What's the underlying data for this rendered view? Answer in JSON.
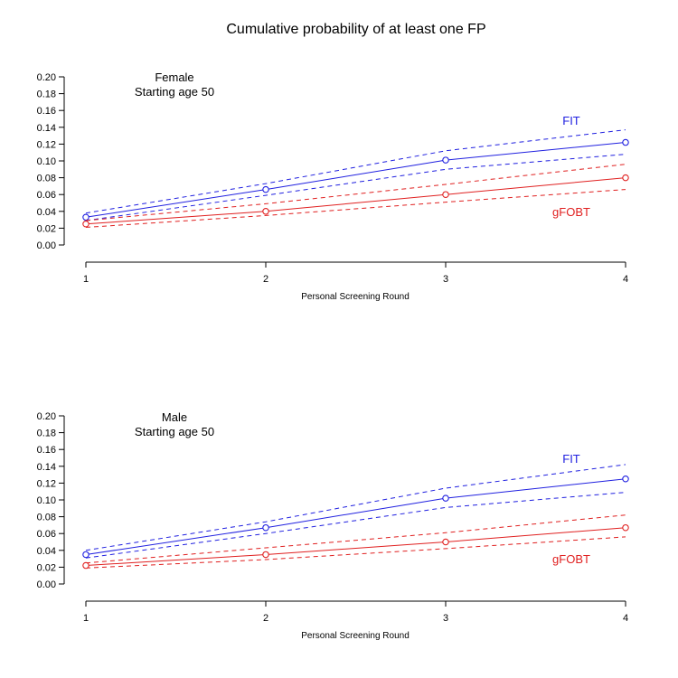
{
  "title": "Cumulative probability of at least one FP",
  "colors": {
    "FIT": "#2020e0",
    "gFOBT": "#e02020",
    "axis": "#000000"
  },
  "chart_data": [
    {
      "type": "line",
      "panel_label": [
        "Female",
        "Starting age 50"
      ],
      "xlabel": "Personal Screening Round",
      "ylabel": "",
      "x": [
        1,
        2,
        3,
        4
      ],
      "xticks": [
        "1",
        "2",
        "3",
        "4"
      ],
      "ylim": [
        0,
        0.2
      ],
      "yticks": [
        "0.00",
        "0.02",
        "0.04",
        "0.06",
        "0.08",
        "0.10",
        "0.12",
        "0.14",
        "0.16",
        "0.18",
        "0.20"
      ],
      "series": [
        {
          "name": "FIT",
          "color": "#2020e0",
          "values": [
            0.033,
            0.066,
            0.101,
            0.122
          ],
          "lower": [
            0.029,
            0.059,
            0.09,
            0.108
          ],
          "upper": [
            0.038,
            0.073,
            0.112,
            0.137
          ]
        },
        {
          "name": "gFOBT",
          "color": "#e02020",
          "values": [
            0.025,
            0.04,
            0.06,
            0.08
          ],
          "lower": [
            0.021,
            0.035,
            0.051,
            0.066
          ],
          "upper": [
            0.029,
            0.049,
            0.072,
            0.096
          ]
        }
      ]
    },
    {
      "type": "line",
      "panel_label": [
        "Male",
        "Starting age 50"
      ],
      "xlabel": "Personal Screening Round",
      "ylabel": "",
      "x": [
        1,
        2,
        3,
        4
      ],
      "xticks": [
        "1",
        "2",
        "3",
        "4"
      ],
      "ylim": [
        0,
        0.2
      ],
      "yticks": [
        "0.00",
        "0.02",
        "0.04",
        "0.06",
        "0.08",
        "0.10",
        "0.12",
        "0.14",
        "0.16",
        "0.18",
        "0.20"
      ],
      "series": [
        {
          "name": "FIT",
          "color": "#2020e0",
          "values": [
            0.035,
            0.067,
            0.102,
            0.125
          ],
          "lower": [
            0.031,
            0.06,
            0.091,
            0.109
          ],
          "upper": [
            0.04,
            0.074,
            0.114,
            0.142
          ]
        },
        {
          "name": "gFOBT",
          "color": "#e02020",
          "values": [
            0.022,
            0.035,
            0.05,
            0.067
          ],
          "lower": [
            0.019,
            0.029,
            0.042,
            0.056
          ],
          "upper": [
            0.025,
            0.043,
            0.061,
            0.082
          ]
        }
      ]
    }
  ]
}
